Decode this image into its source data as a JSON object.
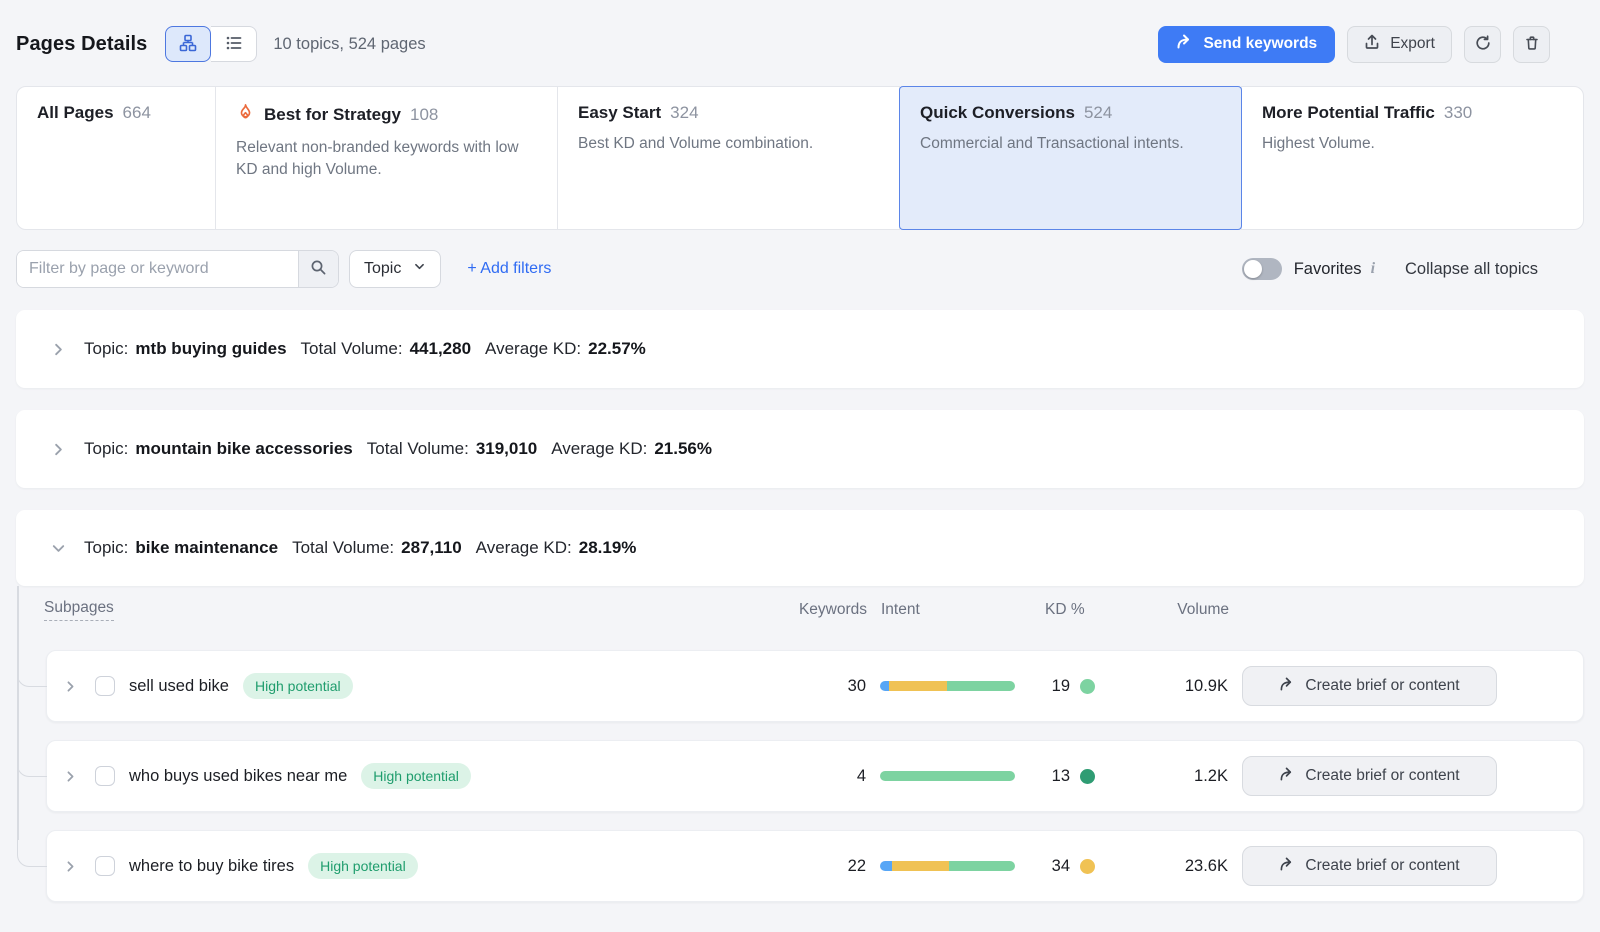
{
  "header": {
    "title": "Pages Details",
    "summary": "10 topics, 524 pages",
    "send_keywords_label": "Send keywords",
    "export_label": "Export"
  },
  "tabs": [
    {
      "label": "All Pages",
      "count": "664",
      "description": "",
      "selected": false
    },
    {
      "label": "Best for Strategy",
      "count": "108",
      "description": "Relevant non-branded keywords with low KD and high Volume.",
      "selected": false,
      "icon": "flame-icon",
      "icon_color": "#eb6a3c"
    },
    {
      "label": "Easy Start",
      "count": "324",
      "description": "Best KD and Volume combination.",
      "selected": false
    },
    {
      "label": "Quick Conversions",
      "count": "524",
      "description": "Commercial and Transactional intents.",
      "selected": true
    },
    {
      "label": "More Potential Traffic",
      "count": "330",
      "description": "Highest Volume.",
      "selected": false
    }
  ],
  "filters": {
    "search_placeholder": "Filter by page or keyword",
    "topic_dropdown_label": "Topic",
    "add_filters_label": "+ Add filters",
    "favorites_label": "Favorites",
    "favorites_toggle_on": false,
    "info_icon": "i",
    "collapse_label": "Collapse all topics"
  },
  "topic_labels": {
    "prefix": "Topic:",
    "total_volume": "Total Volume:",
    "average_kd": "Average KD:"
  },
  "topics": [
    {
      "name": "mtb buying guides",
      "total_volume": "441,280",
      "average_kd": "22.57%",
      "expanded": false
    },
    {
      "name": "mountain bike accessories",
      "total_volume": "319,010",
      "average_kd": "21.56%",
      "expanded": false
    },
    {
      "name": "bike maintenance",
      "total_volume": "287,110",
      "average_kd": "28.19%",
      "expanded": true
    }
  ],
  "table": {
    "columns": [
      "Subpages",
      "Keywords",
      "Intent",
      "KD %",
      "Volume"
    ],
    "action_label": "Create brief or content",
    "rows": [
      {
        "name": "sell used bike",
        "badge": "High potential",
        "keywords": "30",
        "intent_segments": [
          {
            "color": "#57a6f6",
            "pct": 7
          },
          {
            "color": "#f0c254",
            "pct": 43
          },
          {
            "color": "#7dd3a1",
            "pct": 50
          }
        ],
        "kd": "19",
        "kd_dot_color": "#7dd3a1",
        "volume": "10.9K"
      },
      {
        "name": "who buys used bikes near me",
        "badge": "High potential",
        "keywords": "4",
        "intent_segments": [
          {
            "color": "#57a6f6",
            "pct": 0
          },
          {
            "color": "#f0c254",
            "pct": 0
          },
          {
            "color": "#7dd3a1",
            "pct": 100
          }
        ],
        "kd": "13",
        "kd_dot_color": "#2f9c73",
        "volume": "1.2K"
      },
      {
        "name": "where to buy bike tires",
        "badge": "High potential",
        "keywords": "22",
        "intent_segments": [
          {
            "color": "#57a6f6",
            "pct": 9
          },
          {
            "color": "#f0c254",
            "pct": 42
          },
          {
            "color": "#7dd3a1",
            "pct": 49
          }
        ],
        "kd": "34",
        "kd_dot_color": "#f0c254",
        "volume": "23.6K"
      }
    ]
  },
  "colors": {
    "primary_blue": "#3e7bf5",
    "link_blue": "#2f6bf3",
    "selected_tab_bg": "#e3ebfa",
    "selected_tab_border": "#5b85e8",
    "badge_bg": "#dcf3e7",
    "badge_text": "#1f9d6d",
    "intent_transactional": "#57a6f6",
    "intent_commercial": "#f0c254",
    "intent_informational": "#7dd3a1",
    "flame": "#eb6a3c",
    "page_bg": "#f4f5f8"
  }
}
